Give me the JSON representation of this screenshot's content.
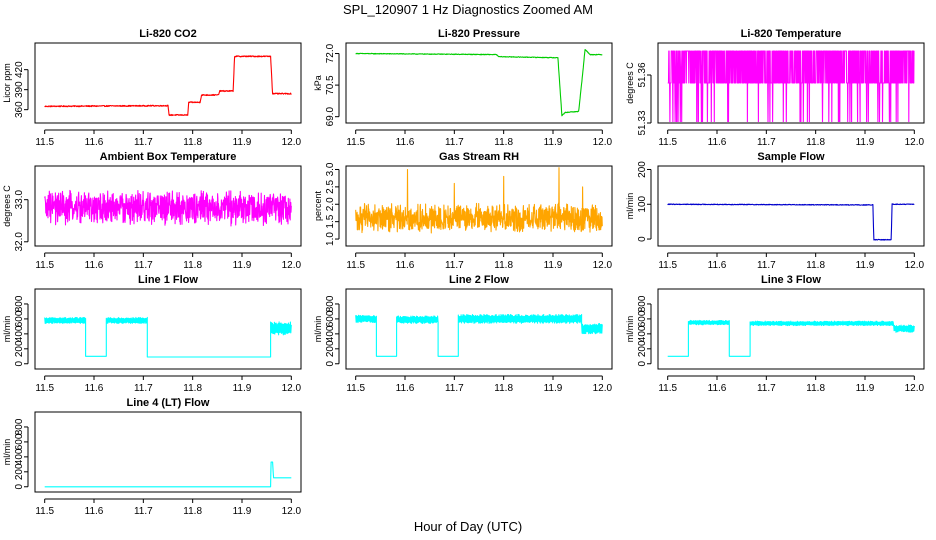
{
  "figure": {
    "title": "SPL_120907  1 Hz Diagnostics Zoomed AM",
    "xlabel": "Hour of Day (UTC)"
  },
  "chart_data": [
    {
      "type": "line",
      "title": "Li-820 CO2",
      "ylabel": "Licor ppm",
      "color": "#ff0000",
      "xlim": [
        11.5,
        12.0
      ],
      "xticks": [
        11.5,
        11.6,
        11.7,
        11.8,
        11.9,
        12.0
      ],
      "xtick_labels": [
        "11.5",
        "11.6",
        "11.7",
        "11.8",
        "11.9",
        "12.0"
      ],
      "ylim": [
        340,
        460
      ],
      "yticks": [
        360,
        390,
        420
      ],
      "ytick_labels": [
        "360",
        "390",
        "420"
      ],
      "series": [
        {
          "style": "step",
          "noise": 0.8,
          "x": [
            11.5,
            11.75,
            11.752,
            11.79,
            11.792,
            11.815,
            11.818,
            11.852,
            11.855,
            11.882,
            11.885,
            11.958,
            11.962,
            12.0
          ],
          "y": [
            365,
            366,
            352,
            352,
            371,
            371,
            382,
            382,
            388,
            388,
            440,
            440,
            384,
            384
          ]
        }
      ]
    },
    {
      "type": "line",
      "title": "Li-820 Pressure",
      "ylabel": "kPa",
      "color": "#00cc00",
      "xlim": [
        11.5,
        12.0
      ],
      "xticks": [
        11.5,
        11.6,
        11.7,
        11.8,
        11.9,
        12.0
      ],
      "xtick_labels": [
        "11.5",
        "11.6",
        "11.7",
        "11.8",
        "11.9",
        "12.0"
      ],
      "ylim": [
        68.7,
        72.5
      ],
      "yticks": [
        69.0,
        70.5,
        72.0
      ],
      "ytick_labels": [
        "69.0",
        "70.5",
        "72.0"
      ],
      "series": [
        {
          "style": "step",
          "noise": 0.015,
          "x": [
            11.5,
            11.785,
            11.79,
            11.91,
            11.918,
            11.925,
            11.952,
            11.96,
            11.965,
            11.975,
            12.0
          ],
          "y": [
            72.0,
            71.95,
            71.85,
            71.8,
            69.05,
            69.2,
            69.25,
            71.0,
            72.2,
            71.95,
            71.95
          ]
        }
      ]
    },
    {
      "type": "line",
      "title": "Li-820 Temperature",
      "ylabel": "degrees C",
      "color": "#ff00ff",
      "xlim": [
        11.5,
        12.0
      ],
      "xticks": [
        11.5,
        11.6,
        11.7,
        11.8,
        11.9,
        12.0
      ],
      "xtick_labels": [
        "11.5",
        "11.6",
        "11.7",
        "11.8",
        "11.9",
        "12.0"
      ],
      "ylim": [
        51.33,
        51.38
      ],
      "yticks": [
        51.33,
        51.36
      ],
      "ytick_labels": [
        "51.33",
        "51.36"
      ],
      "series": [
        {
          "style": "dense_two_level",
          "x_range": [
            11.5,
            12.0
          ],
          "high": 51.375,
          "low": 51.355,
          "low_drop": 51.33
        }
      ]
    },
    {
      "type": "line",
      "title": "Ambient Box Temperature",
      "ylabel": "degrees C",
      "color": "#ff00ff",
      "xlim": [
        11.5,
        12.0
      ],
      "xticks": [
        11.5,
        11.6,
        11.7,
        11.8,
        11.9,
        12.0
      ],
      "xtick_labels": [
        "11.5",
        "11.6",
        "11.7",
        "11.8",
        "11.9",
        "12.0"
      ],
      "ylim": [
        31.9,
        33.8
      ],
      "yticks": [
        32.0,
        33.0
      ],
      "ytick_labels": [
        "32.0",
        "33.0"
      ],
      "series": [
        {
          "style": "dense_noise",
          "x_range": [
            11.5,
            12.0
          ],
          "center": 32.8,
          "amplitude": 0.45
        }
      ]
    },
    {
      "type": "line",
      "title": "Gas Stream RH",
      "ylabel": "percent",
      "color": "#ffa500",
      "xlim": [
        11.5,
        12.0
      ],
      "xticks": [
        11.5,
        11.6,
        11.7,
        11.8,
        11.9,
        12.0
      ],
      "xtick_labels": [
        "11.5",
        "11.6",
        "11.7",
        "11.8",
        "11.9",
        "12.0"
      ],
      "ylim": [
        0.8,
        3.1
      ],
      "yticks": [
        1.0,
        1.5,
        2.0,
        2.5,
        3.0
      ],
      "ytick_labels": [
        "1.0",
        "1.5",
        "2.0",
        "2.5",
        "3.0"
      ],
      "series": [
        {
          "style": "dense_noise",
          "x_range": [
            11.5,
            12.0
          ],
          "center": 1.6,
          "amplitude": 0.45,
          "spikes": [
            [
              11.605,
              3.0
            ],
            [
              11.7,
              2.6
            ],
            [
              11.8,
              2.8
            ],
            [
              11.912,
              3.05
            ],
            [
              11.96,
              2.5
            ]
          ]
        }
      ]
    },
    {
      "type": "line",
      "title": "Sample Flow",
      "ylabel": "ml/min",
      "color": "#0000cc",
      "xlim": [
        11.5,
        12.0
      ],
      "xticks": [
        11.5,
        11.6,
        11.7,
        11.8,
        11.9,
        12.0
      ],
      "xtick_labels": [
        "11.5",
        "11.6",
        "11.7",
        "11.8",
        "11.9",
        "12.0"
      ],
      "ylim": [
        -20,
        210
      ],
      "yticks": [
        0,
        100,
        200
      ],
      "ytick_labels": [
        "0",
        "100",
        "200"
      ],
      "series": [
        {
          "style": "step",
          "noise": 1.0,
          "x": [
            11.5,
            11.916,
            11.918,
            11.953,
            11.955,
            11.958,
            12.0
          ],
          "y": [
            100,
            98,
            -2,
            -2,
            102,
            100,
            100
          ]
        }
      ]
    },
    {
      "type": "line",
      "title": "Line 1 Flow",
      "ylabel": "ml/min",
      "color": "#00ffff",
      "xlim": [
        11.5,
        12.0
      ],
      "xticks": [
        11.5,
        11.6,
        11.7,
        11.8,
        11.9,
        12.0
      ],
      "xtick_labels": [
        "11.5",
        "11.6",
        "11.7",
        "11.8",
        "11.9",
        "12.0"
      ],
      "ylim": [
        -70,
        1000
      ],
      "yticks": [
        0,
        200,
        400,
        600,
        800
      ],
      "ytick_labels": [
        "0",
        "200",
        "400",
        "600",
        "800"
      ],
      "series": [
        {
          "style": "segments",
          "segments": [
            [
              11.5,
              11.583,
              580,
              40
            ],
            [
              11.583,
              11.625,
              100,
              0
            ],
            [
              11.625,
              11.708,
              580,
              40
            ],
            [
              11.708,
              11.958,
              90,
              0
            ],
            [
              11.958,
              12.0,
              470,
              90
            ]
          ]
        }
      ]
    },
    {
      "type": "line",
      "title": "Line 2 Flow",
      "ylabel": "ml/min",
      "color": "#00ffff",
      "xlim": [
        11.5,
        12.0
      ],
      "xticks": [
        11.5,
        11.6,
        11.7,
        11.8,
        11.9,
        12.0
      ],
      "xtick_labels": [
        "11.5",
        "11.6",
        "11.7",
        "11.8",
        "11.9",
        "12.0"
      ],
      "ylim": [
        -70,
        1000
      ],
      "yticks": [
        0,
        200,
        400,
        600,
        800
      ],
      "ytick_labels": [
        "0",
        "200",
        "400",
        "600",
        "800"
      ],
      "series": [
        {
          "style": "segments",
          "segments": [
            [
              11.5,
              11.542,
              600,
              50
            ],
            [
              11.542,
              11.583,
              100,
              0
            ],
            [
              11.583,
              11.667,
              590,
              50
            ],
            [
              11.667,
              11.708,
              100,
              0
            ],
            [
              11.708,
              11.958,
              600,
              60
            ],
            [
              11.958,
              12.0,
              470,
              70
            ]
          ]
        }
      ]
    },
    {
      "type": "line",
      "title": "Line 3 Flow",
      "ylabel": "ml/min",
      "color": "#00ffff",
      "xlim": [
        11.5,
        12.0
      ],
      "xticks": [
        11.5,
        11.6,
        11.7,
        11.8,
        11.9,
        12.0
      ],
      "xtick_labels": [
        "11.5",
        "11.6",
        "11.7",
        "11.8",
        "11.9",
        "12.0"
      ],
      "ylim": [
        -70,
        1000
      ],
      "yticks": [
        0,
        200,
        400,
        600,
        800
      ],
      "ytick_labels": [
        "0",
        "200",
        "400",
        "600",
        "800"
      ],
      "series": [
        {
          "style": "segments",
          "segments": [
            [
              11.5,
              11.542,
              100,
              0
            ],
            [
              11.542,
              11.625,
              550,
              30
            ],
            [
              11.625,
              11.667,
              100,
              0
            ],
            [
              11.667,
              11.958,
              540,
              30
            ],
            [
              11.958,
              12.0,
              470,
              50
            ]
          ]
        }
      ]
    },
    {
      "type": "line",
      "title": "Line 4 (LT) Flow",
      "ylabel": "ml/min",
      "color": "#00ffff",
      "xlim": [
        11.5,
        12.0
      ],
      "xticks": [
        11.5,
        11.6,
        11.7,
        11.8,
        11.9,
        12.0
      ],
      "xtick_labels": [
        "11.5",
        "11.6",
        "11.7",
        "11.8",
        "11.9",
        "12.0"
      ],
      "ylim": [
        -70,
        1000
      ],
      "yticks": [
        0,
        200,
        400,
        600,
        800
      ],
      "ytick_labels": [
        "0",
        "200",
        "400",
        "600",
        "800"
      ],
      "series": [
        {
          "style": "step",
          "noise": 0,
          "x": [
            11.5,
            11.958,
            11.959,
            11.962,
            11.964,
            12.0
          ],
          "y": [
            0,
            0,
            330,
            330,
            120,
            120
          ]
        }
      ]
    }
  ]
}
